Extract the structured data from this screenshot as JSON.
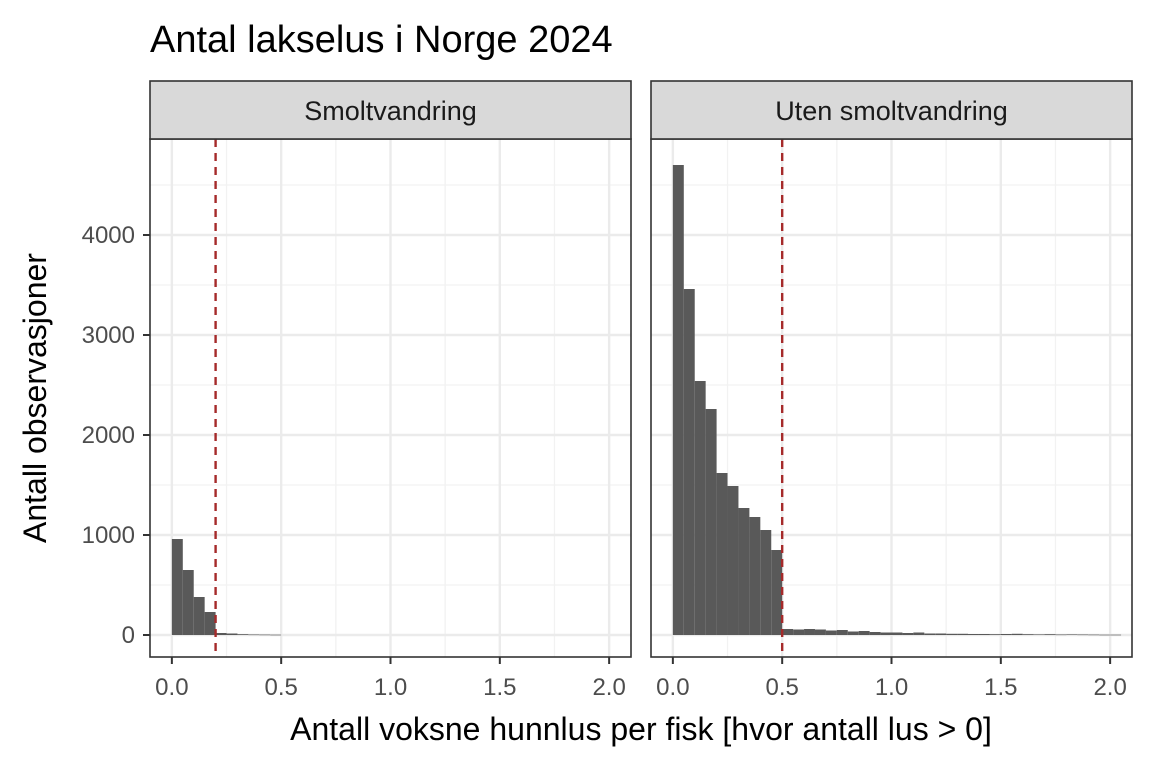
{
  "chart_data": {
    "type": "bar",
    "title": "Antal lakselus i Norge 2024",
    "xlabel": "Antall voksne hunnlus per fisk [hvor antall lus > 0]",
    "ylabel": "Antall observasjoner",
    "xlim": [
      -0.1,
      2.1
    ],
    "ylim": [
      -220,
      4960
    ],
    "x_ticks": [
      "0.0",
      "0.5",
      "1.0",
      "1.5",
      "2.0"
    ],
    "x_tick_values": [
      0,
      0.5,
      1.0,
      1.5,
      2.0
    ],
    "y_ticks": [
      "0",
      "1000",
      "2000",
      "3000",
      "4000"
    ],
    "y_tick_values": [
      0,
      1000,
      2000,
      3000,
      4000
    ],
    "bin_width": 0.05,
    "grid": true,
    "reference_line_color": "#a52a2a",
    "bar_color": "#595959",
    "panels": [
      {
        "name": "Smoltvandring",
        "threshold": 0.2,
        "bin_starts": [
          0.0,
          0.05,
          0.1,
          0.15,
          0.2,
          0.25,
          0.3,
          0.35,
          0.4,
          0.45
        ],
        "values": [
          960,
          650,
          380,
          230,
          20,
          15,
          8,
          5,
          4,
          3
        ]
      },
      {
        "name": "Uten smoltvandring",
        "threshold": 0.5,
        "bin_starts": [
          0.0,
          0.05,
          0.1,
          0.15,
          0.2,
          0.25,
          0.3,
          0.35,
          0.4,
          0.45,
          0.5,
          0.55,
          0.6,
          0.65,
          0.7,
          0.75,
          0.8,
          0.85,
          0.9,
          0.95,
          1.0,
          1.05,
          1.1,
          1.15,
          1.2,
          1.25,
          1.3,
          1.35,
          1.4,
          1.45,
          1.5,
          1.55,
          1.6,
          1.65,
          1.7,
          1.75,
          1.8,
          1.85,
          1.9,
          1.95,
          2.0
        ],
        "values": [
          4700,
          3460,
          2540,
          2260,
          1620,
          1490,
          1270,
          1180,
          1050,
          850,
          60,
          55,
          60,
          55,
          45,
          50,
          35,
          40,
          30,
          25,
          25,
          20,
          25,
          15,
          15,
          12,
          12,
          10,
          10,
          8,
          10,
          12,
          8,
          6,
          8,
          5,
          6,
          5,
          4,
          3,
          3
        ]
      }
    ]
  }
}
